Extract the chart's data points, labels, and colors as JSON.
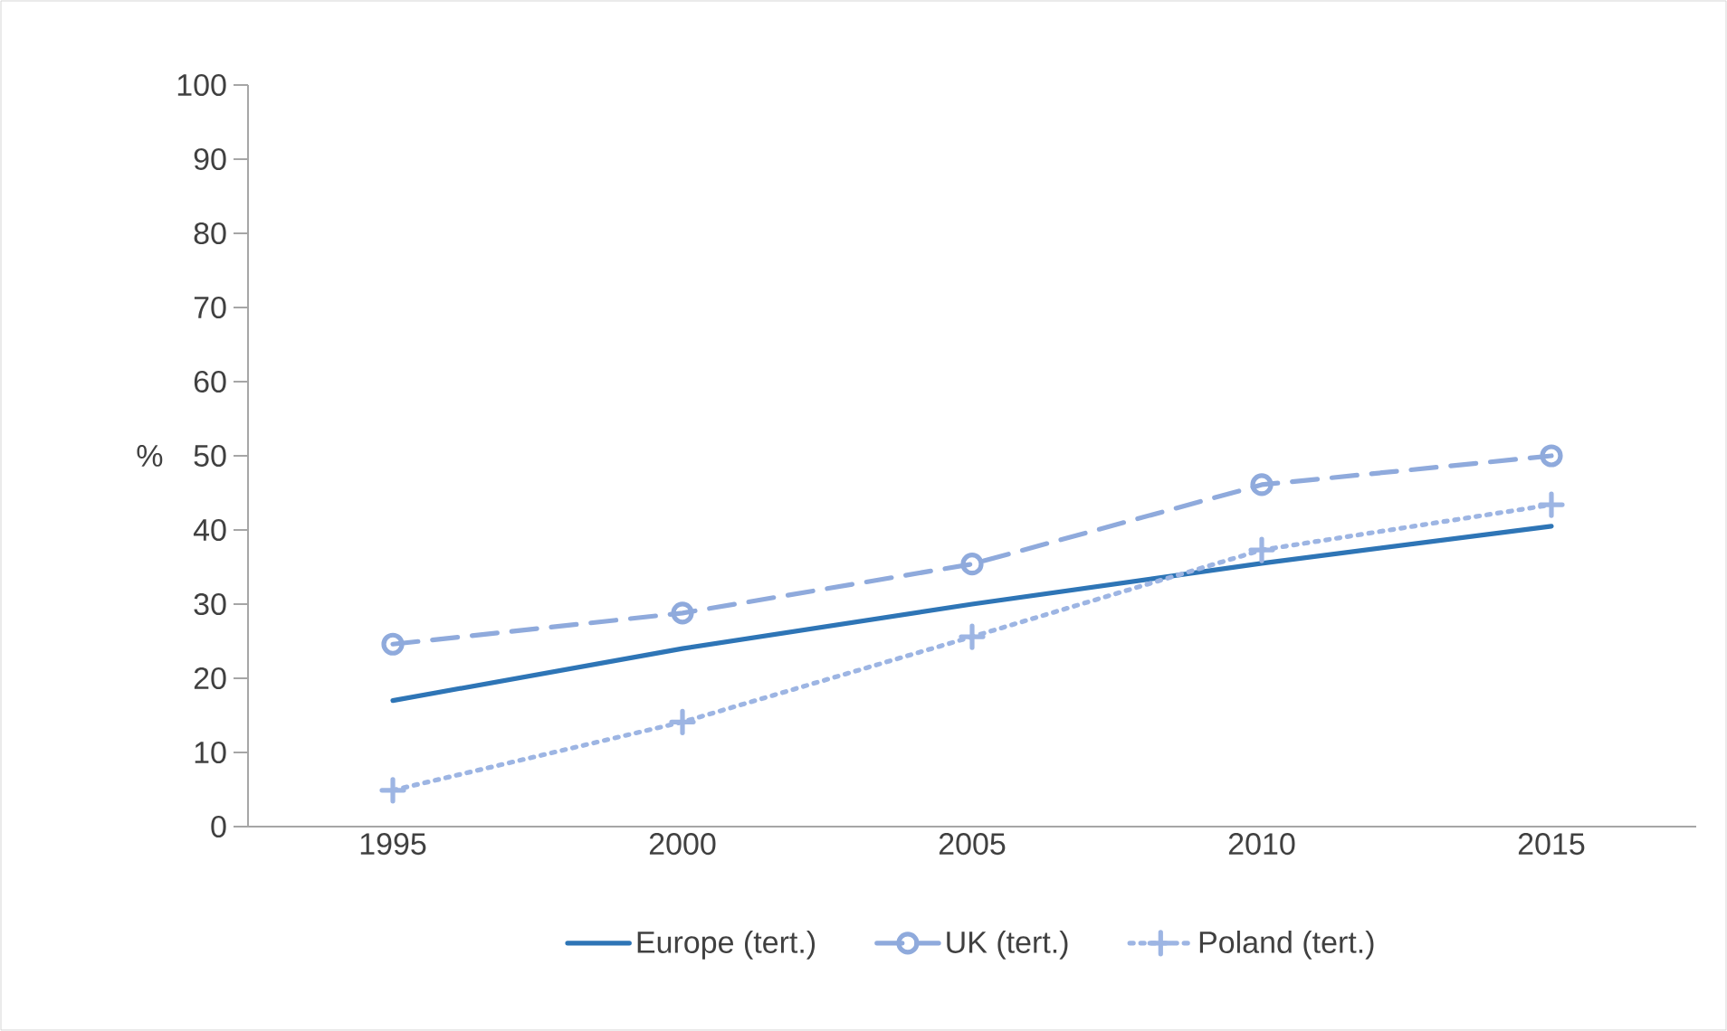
{
  "chart_data": {
    "type": "line",
    "ylabel": "%",
    "categories": [
      "1995",
      "2000",
      "2005",
      "2010",
      "2015"
    ],
    "series": [
      {
        "name": "Europe (tert.)",
        "color": "#2e75b6",
        "values": [
          17.0,
          24.0,
          30.0,
          35.5,
          40.5
        ],
        "marker": "none",
        "line_style": "solid"
      },
      {
        "name": "UK (tert.)",
        "color": "#8faadc",
        "values": [
          24.6,
          28.8,
          35.4,
          46.1,
          50.0
        ],
        "marker": "circle",
        "line_style": "dashed"
      },
      {
        "name": "Poland (tert.)",
        "color": "#9db5e3",
        "values": [
          4.9,
          14.1,
          25.6,
          37.3,
          43.4
        ],
        "marker": "cross",
        "line_style": "dotted"
      }
    ],
    "ylim": [
      0,
      100
    ],
    "yticks": [
      0,
      10,
      20,
      30,
      40,
      50,
      60,
      70,
      80,
      90,
      100
    ],
    "grid": false,
    "legend": "bottom"
  }
}
